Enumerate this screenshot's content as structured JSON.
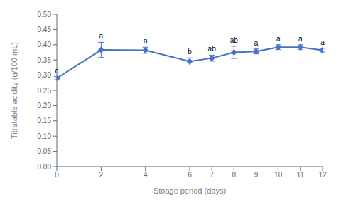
{
  "chart_data": {
    "type": "line",
    "xlabel": "Stoage period (days)",
    "ylabel": "Titratable acidity (g/100 mL)",
    "x": [
      0,
      2,
      4,
      6,
      7,
      8,
      9,
      10,
      11,
      12
    ],
    "values": [
      0.29,
      0.383,
      0.382,
      0.345,
      0.356,
      0.375,
      0.378,
      0.392,
      0.392,
      0.382
    ],
    "yerr": [
      0.005,
      0.025,
      0.01,
      0.012,
      0.01,
      0.02,
      0.008,
      0.008,
      0.008,
      0.006
    ],
    "annotations": [
      "c",
      "a",
      "a",
      "b",
      "ab",
      "ab",
      "a",
      "a",
      "a",
      "a"
    ],
    "xlim": [
      0,
      12
    ],
    "xticks": [
      0,
      2,
      4,
      6,
      7,
      8,
      9,
      10,
      11,
      12
    ],
    "ylim": [
      0.0,
      0.5
    ],
    "yticks": [
      {
        "value": 0.0,
        "label": "0.00"
      },
      {
        "value": 0.05,
        "label": "0.05"
      },
      {
        "value": 0.1,
        "label": "0.10"
      },
      {
        "value": 0.15,
        "label": "0.15"
      },
      {
        "value": 0.2,
        "label": "0.20"
      },
      {
        "value": 0.25,
        "label": "0.25"
      },
      {
        "value": 0.3,
        "label": "0.30"
      },
      {
        "value": 0.35,
        "label": "0.35"
      },
      {
        "value": 0.4,
        "label": "0.40"
      },
      {
        "value": 0.45,
        "label": "0.45"
      },
      {
        "value": 0.5,
        "label": "0.50"
      }
    ],
    "color": "#4472C4",
    "marker": "diamond"
  }
}
